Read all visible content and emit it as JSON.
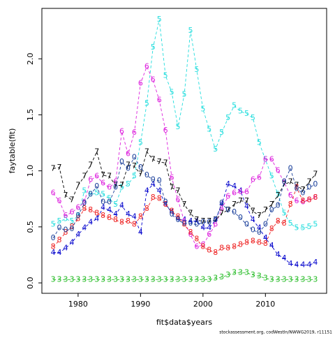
{
  "chart_data": {
    "type": "line",
    "xlabel": "fit$data$years",
    "ylabel": "faytable(fit)",
    "footnote": "stockassessment.org, codWestIn/NWWG2019, r11151",
    "x": [
      1976,
      1977,
      1978,
      1979,
      1980,
      1981,
      1982,
      1983,
      1984,
      1985,
      1986,
      1987,
      1988,
      1989,
      1990,
      1991,
      1992,
      1993,
      1994,
      1995,
      1996,
      1997,
      1998,
      1999,
      2000,
      2001,
      2002,
      2003,
      2004,
      2005,
      2006,
      2007,
      2008,
      2009,
      2010,
      2011,
      2012,
      2013,
      2014,
      2015,
      2016,
      2017,
      2018
    ],
    "xlim": [
      1974.2,
      2019.8
    ],
    "xticks": [
      1980,
      1990,
      2000,
      2010
    ],
    "ylim": [
      -0.093,
      2.45
    ],
    "yticks": [
      {
        "value": 0,
        "label": "0.0"
      },
      {
        "value": 0.5,
        "label": "0.5"
      },
      {
        "value": 1,
        "label": "1.0"
      },
      {
        "value": 1.5,
        "label": "1.5"
      },
      {
        "value": 2,
        "label": "2.0"
      }
    ],
    "series": [
      {
        "name": "3",
        "color": "#22bb22",
        "values": [
          0.03,
          0.03,
          0.03,
          0.03,
          0.03,
          0.03,
          0.03,
          0.03,
          0.03,
          0.03,
          0.03,
          0.03,
          0.03,
          0.03,
          0.03,
          0.03,
          0.03,
          0.03,
          0.03,
          0.03,
          0.03,
          0.03,
          0.03,
          0.03,
          0.03,
          0.03,
          0.04,
          0.05,
          0.07,
          0.09,
          0.09,
          0.09,
          0.07,
          0.06,
          0.04,
          0.03,
          0.03,
          0.03,
          0.03,
          0.03,
          0.03,
          0.03,
          0.03
        ]
      },
      {
        "name": "4",
        "color": "#0000cc",
        "values": [
          0.27,
          0.27,
          0.31,
          0.36,
          0.43,
          0.49,
          0.54,
          0.57,
          0.67,
          0.65,
          0.61,
          0.69,
          0.61,
          0.59,
          0.45,
          0.82,
          0.88,
          0.82,
          0.7,
          0.63,
          0.57,
          0.56,
          0.55,
          0.55,
          0.49,
          0.49,
          0.56,
          0.7,
          0.88,
          0.86,
          0.82,
          0.68,
          0.56,
          0.49,
          0.4,
          0.33,
          0.25,
          0.22,
          0.17,
          0.16,
          0.16,
          0.16,
          0.18
        ]
      },
      {
        "name": "5",
        "color": "#22dddd",
        "values": [
          0.52,
          0.55,
          0.57,
          0.55,
          0.6,
          0.82,
          0.79,
          0.8,
          0.79,
          0.75,
          0.7,
          0.85,
          0.88,
          0.95,
          1.25,
          1.6,
          2.1,
          2.35,
          1.85,
          1.7,
          1.39,
          1.68,
          2.25,
          1.9,
          1.55,
          1.37,
          1.19,
          1.34,
          1.47,
          1.58,
          1.53,
          1.51,
          1.47,
          1.25,
          1.1,
          0.95,
          0.79,
          0.62,
          0.53,
          0.49,
          0.49,
          0.5,
          0.52
        ]
      },
      {
        "name": "6",
        "color": "#dd22dd",
        "values": [
          0.8,
          0.73,
          0.6,
          0.63,
          0.67,
          0.72,
          0.92,
          0.95,
          0.89,
          0.85,
          0.9,
          1.35,
          1.15,
          1.34,
          1.78,
          1.93,
          1.81,
          1.63,
          1.36,
          0.94,
          0.74,
          0.55,
          0.43,
          0.32,
          0.34,
          0.43,
          0.52,
          0.66,
          0.77,
          0.8,
          0.81,
          0.81,
          0.92,
          0.94,
          1.1,
          1.1,
          1.0,
          0.9,
          0.78,
          0.73,
          0.72,
          0.74,
          0.76
        ]
      },
      {
        "name": "7",
        "color": "#000000",
        "values": [
          1.02,
          1.03,
          0.78,
          0.74,
          0.87,
          0.95,
          1.05,
          1.17,
          0.96,
          0.95,
          0.87,
          0.87,
          1.05,
          1.04,
          0.97,
          1.17,
          1.1,
          1.08,
          1.07,
          0.85,
          0.82,
          0.7,
          0.62,
          0.56,
          0.55,
          0.55,
          0.56,
          0.62,
          0.65,
          0.7,
          0.73,
          0.73,
          0.64,
          0.6,
          0.65,
          0.7,
          0.78,
          0.88,
          0.9,
          0.87,
          0.83,
          0.9,
          0.97
        ]
      },
      {
        "name": "8",
        "color": "#ee2222",
        "values": [
          0.32,
          0.38,
          0.45,
          0.5,
          0.57,
          0.66,
          0.65,
          0.62,
          0.6,
          0.58,
          0.56,
          0.54,
          0.55,
          0.52,
          0.59,
          0.66,
          0.76,
          0.75,
          0.7,
          0.64,
          0.59,
          0.52,
          0.45,
          0.39,
          0.32,
          0.29,
          0.27,
          0.31,
          0.31,
          0.32,
          0.34,
          0.36,
          0.37,
          0.36,
          0.35,
          0.48,
          0.55,
          0.53,
          0.7,
          0.85,
          0.73,
          0.74,
          0.76
        ]
      },
      {
        "name": "0",
        "color": "#1a3f9a",
        "values": [
          0.4,
          0.49,
          0.47,
          0.48,
          0.6,
          0.71,
          0.79,
          0.86,
          0.72,
          0.72,
          0.85,
          1.08,
          1.02,
          1.12,
          1.03,
          0.96,
          0.92,
          0.91,
          0.72,
          0.61,
          0.56,
          0.53,
          0.53,
          0.52,
          0.54,
          0.54,
          0.56,
          0.71,
          0.65,
          0.63,
          0.58,
          0.52,
          0.47,
          0.45,
          0.52,
          0.65,
          0.69,
          0.9,
          1.02,
          0.84,
          0.8,
          0.85,
          0.88
        ]
      }
    ]
  }
}
